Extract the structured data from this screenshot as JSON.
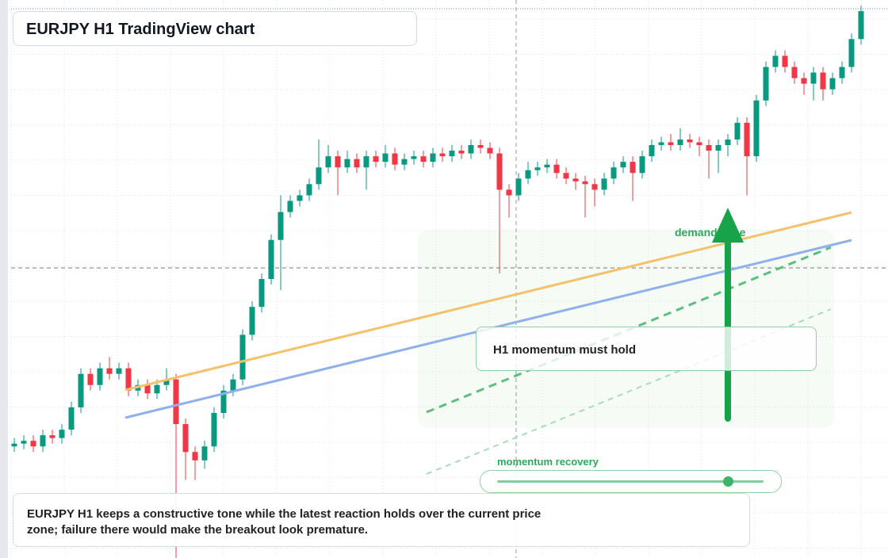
{
  "chart_data": {
    "type": "candlestick",
    "title": "EURJPY H1 TradingView chart",
    "open": [
      20,
      20.5,
      21,
      20,
      22,
      21.5,
      23,
      27,
      33,
      31,
      34,
      33,
      34,
      30,
      31,
      29.5,
      31,
      32,
      24,
      19,
      17.5,
      20,
      26,
      30,
      32,
      40,
      45,
      50,
      57,
      62,
      64,
      65,
      67,
      70,
      72,
      70,
      71.5,
      70,
      72,
      71,
      72.5,
      70.5,
      71.5,
      72,
      71,
      72.5,
      72,
      73,
      72.5,
      74,
      73.5,
      72.5,
      66,
      65,
      68,
      69.5,
      70,
      70.5,
      69,
      68,
      67.5,
      67,
      66,
      68,
      70,
      71,
      69,
      72,
      74,
      74.5,
      74,
      75,
      74.5,
      74,
      73,
      74,
      75,
      78,
      72,
      82,
      88,
      90,
      88,
      86,
      85,
      87,
      84,
      86,
      88,
      93
    ],
    "high": [
      21.5,
      22,
      22,
      23,
      23,
      24,
      28,
      34,
      34,
      35,
      36,
      35,
      35,
      32,
      32,
      32,
      34,
      33,
      25,
      20,
      21,
      27,
      31,
      33,
      41,
      46,
      51,
      58,
      65,
      65,
      66,
      68,
      75,
      74,
      73,
      73,
      72.5,
      73,
      73,
      74,
      73.5,
      72.5,
      73,
      73,
      73.5,
      73.5,
      74,
      74,
      75,
      75,
      74.5,
      73.5,
      67,
      69,
      71,
      71,
      71.5,
      71.5,
      70,
      69,
      68.5,
      68,
      69,
      71,
      72,
      72,
      73,
      75,
      75.5,
      76,
      77,
      76,
      75.5,
      75,
      75,
      76,
      79,
      79,
      83,
      89,
      91,
      91,
      89,
      87,
      88,
      88,
      87,
      89,
      94,
      99
    ],
    "low": [
      19,
      19.5,
      19,
      19,
      20.5,
      20.5,
      22,
      26,
      30,
      30,
      32,
      32,
      29,
      29,
      28.5,
      28.5,
      30,
      0,
      14,
      14,
      16,
      19,
      25,
      29,
      31,
      39,
      44,
      49,
      48,
      61,
      63,
      64,
      66,
      69,
      65,
      69,
      69,
      66,
      70,
      70,
      69.5,
      69.5,
      70.5,
      70,
      70,
      71,
      71,
      71.5,
      71.5,
      72.5,
      71.5,
      51,
      61,
      64,
      67,
      68.5,
      69,
      68,
      67,
      66,
      61,
      63,
      65,
      67,
      69,
      64,
      68,
      71,
      73,
      73,
      73,
      73.5,
      72,
      68,
      69,
      72,
      74,
      65,
      71,
      81,
      87,
      87,
      85,
      83,
      82,
      82,
      83,
      85,
      87,
      92
    ],
    "close": [
      20.5,
      21,
      20,
      22,
      21.5,
      23,
      27,
      33,
      31,
      34,
      33,
      34,
      30,
      31,
      29.5,
      31,
      32,
      24,
      19,
      17.5,
      20,
      26,
      30,
      32,
      40,
      45,
      50,
      57,
      62,
      64,
      65,
      67,
      70,
      72,
      70,
      71.5,
      70,
      72,
      71,
      72.5,
      70.5,
      71.5,
      72,
      71,
      72.5,
      72,
      73,
      72.5,
      74,
      73.5,
      72.5,
      66,
      65,
      68,
      69.5,
      70,
      70.5,
      69,
      68,
      67.5,
      67,
      66,
      68,
      70,
      71,
      69,
      72,
      74,
      74.5,
      74,
      75,
      74.5,
      74,
      73,
      74,
      75,
      78,
      72,
      82,
      88,
      90,
      88,
      86,
      85,
      87,
      84,
      86,
      88,
      93,
      98
    ],
    "up_color": "#089981",
    "down_color": "#f23645",
    "ylim": [
      0,
      100
    ],
    "annotations": {
      "zone_label": "demand zone",
      "callout": "H1 momentum must hold",
      "slider_label": "momentum recovery",
      "summary": "EURJPY H1 keeps a constructive tone while the latest reaction holds over the current price zone; failure there would make the breakout look premature."
    }
  }
}
